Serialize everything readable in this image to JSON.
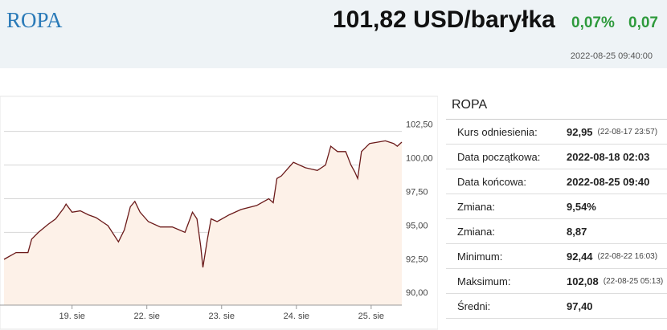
{
  "header": {
    "title": "ROPA",
    "price": "101,82 USD/baryłka",
    "change_pct": "0,07%",
    "change": "0,07",
    "timestamp": "2022-08-25 09:40:00"
  },
  "chart_data": {
    "type": "line",
    "color": "#6b1a1a",
    "area_color": "#fdf1e8",
    "grid": true,
    "x": [
      0.09,
      0.25,
      0.41,
      0.46,
      0.55,
      0.68,
      0.78,
      0.89,
      0.92,
      1,
      1.11,
      1.22,
      1.32,
      1.48,
      1.62,
      1.7,
      1.78,
      1.84,
      1.91,
      2.02,
      2.18,
      2.34,
      2.51,
      2.61,
      2.67,
      2.72,
      2.75,
      2.81,
      2.86,
      2.94,
      3.1,
      3.26,
      3.47,
      3.63,
      3.69,
      3.74,
      3.8,
      3.88,
      3.96,
      4.12,
      4.28,
      4.39,
      4.46,
      4.55,
      4.66,
      4.73,
      4.78,
      4.82,
      4.87,
      4.98,
      5.09,
      5.19,
      5.3,
      5.35,
      5.41
    ],
    "values": [
      93.0,
      93.5,
      93.5,
      94.5,
      95.0,
      95.6,
      96.0,
      96.8,
      97.1,
      96.5,
      96.6,
      96.3,
      96.1,
      95.5,
      94.3,
      95.2,
      96.9,
      97.3,
      96.5,
      95.8,
      95.4,
      95.4,
      95.0,
      96.5,
      96.0,
      94.0,
      92.4,
      94.5,
      96.0,
      95.8,
      96.3,
      96.7,
      97.0,
      97.5,
      97.2,
      99.0,
      99.2,
      99.7,
      100.2,
      99.8,
      99.6,
      100.0,
      101.4,
      101.0,
      101.0,
      100.0,
      99.5,
      99.0,
      101.0,
      101.6,
      101.7,
      101.8,
      101.6,
      101.4,
      101.7
    ],
    "xlim": [
      0.09,
      5.41
    ],
    "xticks": [
      {
        "value": 1,
        "label": "19. sie"
      },
      {
        "value": 2,
        "label": "22. sie"
      },
      {
        "value": 3,
        "label": "23. sie"
      },
      {
        "value": 4,
        "label": "24. sie"
      },
      {
        "value": 5,
        "label": "25. sie"
      }
    ],
    "ylim": [
      89.6,
      105.1
    ],
    "yticks": [
      {
        "value": 90,
        "label": "90,00"
      },
      {
        "value": 92.5,
        "label": "92,50"
      },
      {
        "value": 95,
        "label": "95,00"
      },
      {
        "value": 97.5,
        "label": "97,50"
      },
      {
        "value": 100,
        "label": "100,00"
      },
      {
        "value": 102.5,
        "label": "102,50"
      }
    ]
  },
  "table": {
    "title": "ROPA",
    "rows": [
      [
        "Kurs odniesienia:",
        "92,95",
        "(22-08-17 23:57)"
      ],
      [
        "Data początkowa:",
        "2022-08-18 02:03"
      ],
      [
        "Data końcowa:",
        "2022-08-25 09:40"
      ],
      [
        "Zmiana:",
        "9,54%"
      ],
      [
        "Zmiana:",
        "8,87"
      ],
      [
        "Minimum:",
        "92,44",
        "(22-08-22 16:03)"
      ],
      [
        "Maksimum:",
        "102,08",
        "(22-08-25 05:13)"
      ],
      [
        "Średni:",
        "97,40"
      ]
    ]
  }
}
